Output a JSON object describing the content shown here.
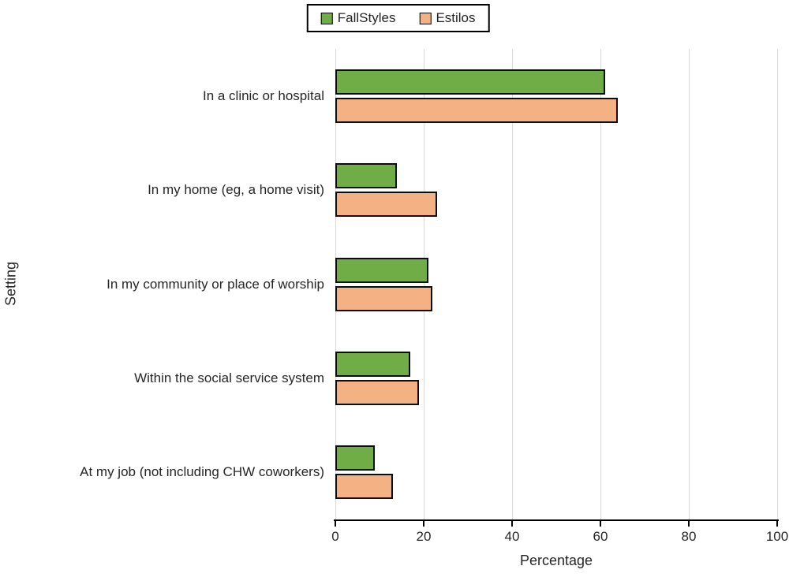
{
  "chart_data": {
    "type": "bar",
    "orientation": "horizontal",
    "title": "",
    "xlabel": "Percentage",
    "ylabel": "Setting",
    "categories": [
      "In a clinic or hospital",
      "In my home (eg, a home visit)",
      "In my community or place of worship",
      "Within the social service system",
      "At my job (not including CHW coworkers)"
    ],
    "series": [
      {
        "name": "FallStyles",
        "color": "#70AD47",
        "values": [
          61,
          14,
          21,
          17,
          9
        ]
      },
      {
        "name": "Estilos",
        "color": "#F4B183",
        "values": [
          64,
          23,
          22,
          19,
          13
        ]
      }
    ],
    "xlim": [
      0,
      100
    ],
    "xticks": [
      0,
      20,
      40,
      60,
      80,
      100
    ],
    "grid": "vertical",
    "legend_position": "top-center",
    "styles": {
      "grid_color": "#D9D9D9",
      "axis_color": "#000000",
      "bar_border_color": "#0D0D0D",
      "text_color": "#262626",
      "background": "#FFFFFF"
    }
  }
}
